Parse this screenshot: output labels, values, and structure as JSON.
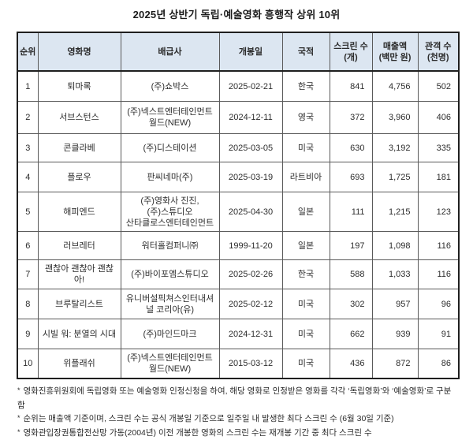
{
  "title": "2025년 상반기 독립·예술영화 흥행작 상위 10위",
  "table": {
    "headers": {
      "rank": "순위",
      "movie": "영화명",
      "distributor": "배급사",
      "release_date": "개봉일",
      "country": "국적",
      "screens": "스크린 수\n(개)",
      "revenue": "매출액\n(백만 원)",
      "audience": "관객 수\n(천명)"
    },
    "rows": [
      {
        "rank": "1",
        "movie": "퇴마록",
        "distributor": "(주)쇼박스",
        "release_date": "2025-02-21",
        "country": "한국",
        "screens": "841",
        "revenue": "4,756",
        "audience": "502"
      },
      {
        "rank": "2",
        "movie": "서브스턴스",
        "distributor": "(주)넥스트엔터테인먼트월드(NEW)",
        "release_date": "2024-12-11",
        "country": "영국",
        "screens": "372",
        "revenue": "3,960",
        "audience": "406"
      },
      {
        "rank": "3",
        "movie": "콘클라베",
        "distributor": "(주)디스테이션",
        "release_date": "2025-03-05",
        "country": "미국",
        "screens": "630",
        "revenue": "3,192",
        "audience": "335"
      },
      {
        "rank": "4",
        "movie": "플로우",
        "distributor": "판씨네마(주)",
        "release_date": "2025-03-19",
        "country": "라트비아",
        "screens": "693",
        "revenue": "1,725",
        "audience": "181"
      },
      {
        "rank": "5",
        "movie": "해피엔드",
        "distributor": "(주)영화사 진진,\n(주)스튜디오\n산타클로스엔터테인먼트",
        "release_date": "2025-04-30",
        "country": "일본",
        "screens": "111",
        "revenue": "1,215",
        "audience": "123"
      },
      {
        "rank": "6",
        "movie": "러브레터",
        "distributor": "워터홀컴퍼니㈜",
        "release_date": "1999-11-20",
        "country": "일본",
        "screens": "197",
        "revenue": "1,098",
        "audience": "116"
      },
      {
        "rank": "7",
        "movie": "괜찮아 괜찮아 괜찮아!",
        "distributor": "(주)바이포엠스튜디오",
        "release_date": "2025-02-26",
        "country": "한국",
        "screens": "588",
        "revenue": "1,033",
        "audience": "116"
      },
      {
        "rank": "8",
        "movie": "브루탈리스트",
        "distributor": "유니버설픽쳐스인터내셔널 코리아(유)",
        "release_date": "2025-02-12",
        "country": "미국",
        "screens": "302",
        "revenue": "957",
        "audience": "96"
      },
      {
        "rank": "9",
        "movie": "시빌 워: 분열의 시대",
        "distributor": "(주)마인드마크",
        "release_date": "2024-12-31",
        "country": "미국",
        "screens": "662",
        "revenue": "939",
        "audience": "91"
      },
      {
        "rank": "10",
        "movie": "위플래쉬",
        "distributor": "(주)넥스트엔터테인먼트월드(NEW)",
        "release_date": "2015-03-12",
        "country": "미국",
        "screens": "436",
        "revenue": "872",
        "audience": "86"
      }
    ]
  },
  "footnotes": {
    "bullet": "*",
    "items": [
      "영화진흥위원회에 독립영화 또는 예술영화 인정신청을 하여, 해당 영화로 인정받은 영화를 각각 ‘독립영화’와 ‘예술영화’로 구분함",
      "순위는 매출액 기준이며, 스크린 수는 공식 개봉일 기준으로 일주일 내 발생한 최다 스크린 수 (6월 30일 기준)",
      "영화관입장권통합전산망 가동(2004년) 이전 개봉한 영화의 스크린 수는 재개봉 기간 중 최다 스크린 수"
    ]
  },
  "colors": {
    "header_bg": "#dce6f1",
    "outer_border": "#1f1f1f",
    "inner_border": "#5a5a5a",
    "text": "#2d2d2d"
  }
}
